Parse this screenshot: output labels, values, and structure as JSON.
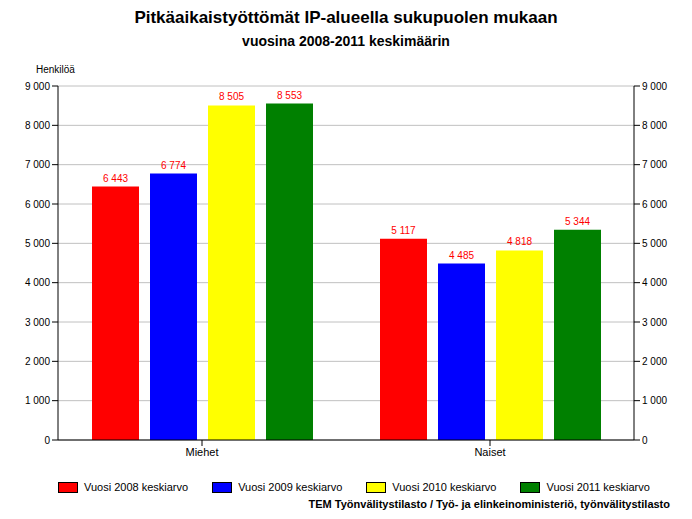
{
  "chart_data": {
    "type": "bar",
    "title": "Pitkäaikaistyöttömät IP-alueella sukupuolen mukaan",
    "subtitle": "vuosina 2008-2011 keskimäärin",
    "y_label": "Henkilöä",
    "source": "TEM Työnvälitystilasto / Työ- ja elinkeinoministeriö, työnvälitystilasto",
    "categories": [
      "Miehet",
      "Naiset"
    ],
    "series": [
      {
        "name": "Vuosi 2008 keskiarvo",
        "color": "#ff0000",
        "values": [
          6443,
          5117
        ],
        "value_labels": [
          "6 443",
          "5 117"
        ]
      },
      {
        "name": "Vuosi 2009 keskiarvo",
        "color": "#0000ff",
        "values": [
          6774,
          4485
        ],
        "value_labels": [
          "6 774",
          "4 485"
        ]
      },
      {
        "name": "Vuosi 2010 keskiarvo",
        "color": "#ffff00",
        "values": [
          8505,
          4818
        ],
        "value_labels": [
          "8 505",
          "4 818"
        ]
      },
      {
        "name": "Vuosi 2011 keskiarvo",
        "color": "#008000",
        "values": [
          8553,
          5344
        ],
        "value_labels": [
          "8 553",
          "5 344"
        ]
      }
    ],
    "ylim": [
      0,
      9000
    ],
    "yticks": [
      0,
      {
        "value": 1000,
        "label": "1 000"
      },
      {
        "value": 2000,
        "label": "2 000"
      },
      {
        "value": 3000,
        "label": "3 000"
      },
      {
        "value": 4000,
        "label": "4 000"
      },
      {
        "value": 5000,
        "label": "5 000"
      },
      {
        "value": 6000,
        "label": "6 000"
      },
      {
        "value": 7000,
        "label": "7 000"
      },
      {
        "value": 8000,
        "label": "8 000"
      },
      {
        "value": 9000,
        "label": "9 000"
      }
    ],
    "y2lim": [
      0,
      9000
    ],
    "y2ticks": [
      0,
      {
        "value": 1000,
        "label": "1 000"
      },
      {
        "value": 2000,
        "label": "2 000"
      },
      {
        "value": 3000,
        "label": "3 000"
      },
      {
        "value": 4000,
        "label": "4 000"
      },
      {
        "value": 5000,
        "label": "5 000"
      },
      {
        "value": 6000,
        "label": "6 000"
      },
      {
        "value": 7000,
        "label": "7 000"
      },
      {
        "value": 8000,
        "label": "8 000"
      },
      {
        "value": 9000,
        "label": "9 000"
      }
    ],
    "grid": true,
    "legend": "bottom",
    "data_labels": true
  }
}
